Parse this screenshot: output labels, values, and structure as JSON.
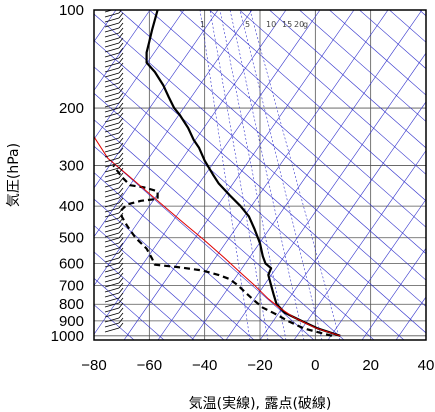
{
  "chart_data": {
    "type": "line",
    "title": "",
    "xlabel": "気温(実線), 露点(破線)",
    "ylabel": "気圧(hPa)",
    "xlim": [
      -80,
      40
    ],
    "ylim": [
      1030,
      100
    ],
    "y_scale": "log",
    "x_ticks": [
      -80,
      -60,
      -40,
      -20,
      0,
      20,
      40
    ],
    "y_ticks": [
      100,
      200,
      300,
      400,
      500,
      600,
      700,
      800,
      900,
      1000
    ],
    "grid": true,
    "mixing_ratio_labels": [
      "1",
      "5",
      "10",
      "15",
      "20",
      "g"
    ],
    "colors": {
      "temperature": "#000000",
      "dewpoint": "#000000",
      "parcel": "#e00000",
      "reference_lines": "#3333cc",
      "grid": "#555555",
      "wind_barbs": "#000000"
    },
    "series": [
      {
        "key": "temperature",
        "style": "solid",
        "points": [
          {
            "t": 9,
            "p": 1000
          },
          {
            "t": 5,
            "p": 975
          },
          {
            "t": 1,
            "p": 950
          },
          {
            "t": -2,
            "p": 925
          },
          {
            "t": -5,
            "p": 900
          },
          {
            "t": -8,
            "p": 875
          },
          {
            "t": -11,
            "p": 850
          },
          {
            "t": -14,
            "p": 800
          },
          {
            "t": -15,
            "p": 750
          },
          {
            "t": -16,
            "p": 700
          },
          {
            "t": -17,
            "p": 650
          },
          {
            "t": -16,
            "p": 620
          },
          {
            "t": -18,
            "p": 600
          },
          {
            "t": -19,
            "p": 570
          },
          {
            "t": -20,
            "p": 520
          },
          {
            "t": -22,
            "p": 470
          },
          {
            "t": -24,
            "p": 430
          },
          {
            "t": -27,
            "p": 400
          },
          {
            "t": -31,
            "p": 370
          },
          {
            "t": -35,
            "p": 340
          },
          {
            "t": -37,
            "p": 320
          },
          {
            "t": -40,
            "p": 290
          },
          {
            "t": -42,
            "p": 265
          },
          {
            "t": -44,
            "p": 250
          },
          {
            "t": -46,
            "p": 230
          },
          {
            "t": -49,
            "p": 210
          },
          {
            "t": -51,
            "p": 200
          },
          {
            "t": -53,
            "p": 185
          },
          {
            "t": -55,
            "p": 170
          },
          {
            "t": -58,
            "p": 155
          },
          {
            "t": -61,
            "p": 145
          },
          {
            "t": -61,
            "p": 135
          },
          {
            "t": -60,
            "p": 125
          },
          {
            "t": -59,
            "p": 115
          },
          {
            "t": -57,
            "p": 100
          }
        ]
      },
      {
        "key": "dewpoint",
        "style": "dashed",
        "points": [
          {
            "t": 6,
            "p": 1000
          },
          {
            "t": 1,
            "p": 975
          },
          {
            "t": -4,
            "p": 950
          },
          {
            "t": -7,
            "p": 925
          },
          {
            "t": -10,
            "p": 900
          },
          {
            "t": -14,
            "p": 860
          },
          {
            "t": -19,
            "p": 820
          },
          {
            "t": -22,
            "p": 780
          },
          {
            "t": -25,
            "p": 740
          },
          {
            "t": -28,
            "p": 700
          },
          {
            "t": -31,
            "p": 670
          },
          {
            "t": -35,
            "p": 650
          },
          {
            "t": -41,
            "p": 630
          },
          {
            "t": -50,
            "p": 615
          },
          {
            "t": -58,
            "p": 605
          },
          {
            "t": -59,
            "p": 580
          },
          {
            "t": -61,
            "p": 540
          },
          {
            "t": -65,
            "p": 500
          },
          {
            "t": -68,
            "p": 460
          },
          {
            "t": -70,
            "p": 430
          },
          {
            "t": -70,
            "p": 410
          },
          {
            "t": -68,
            "p": 395
          },
          {
            "t": -63,
            "p": 385
          },
          {
            "t": -57,
            "p": 380
          },
          {
            "t": -57,
            "p": 360
          },
          {
            "t": -62,
            "p": 350
          },
          {
            "t": -67,
            "p": 345
          },
          {
            "t": -70,
            "p": 325
          },
          {
            "t": -73,
            "p": 300
          }
        ]
      },
      {
        "key": "parcel",
        "style": "solid",
        "points": [
          {
            "t": 9,
            "p": 1000
          },
          {
            "t": 4,
            "p": 970
          },
          {
            "t": 0,
            "p": 945
          },
          {
            "t": -4,
            "p": 910
          },
          {
            "t": -8,
            "p": 875
          },
          {
            "t": -13,
            "p": 820
          },
          {
            "t": -17,
            "p": 770
          },
          {
            "t": -22,
            "p": 700
          },
          {
            "t": -27,
            "p": 640
          },
          {
            "t": -33,
            "p": 575
          },
          {
            "t": -40,
            "p": 510
          },
          {
            "t": -47,
            "p": 455
          },
          {
            "t": -54,
            "p": 405
          },
          {
            "t": -61,
            "p": 360
          },
          {
            "t": -68,
            "p": 320
          },
          {
            "t": -75,
            "p": 285
          },
          {
            "t": -80,
            "p": 245
          }
        ]
      }
    ]
  }
}
